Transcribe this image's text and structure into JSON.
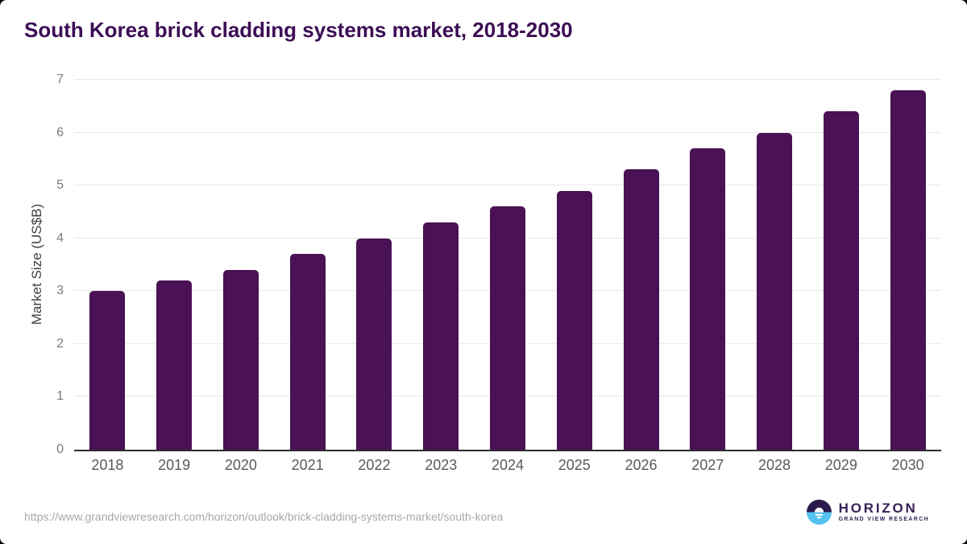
{
  "title": "South Korea brick cladding systems market, 2018-2030",
  "chart_data": {
    "type": "bar",
    "title": "South Korea brick cladding systems market, 2018-2030",
    "categories": [
      "2018",
      "2019",
      "2020",
      "2021",
      "2022",
      "2023",
      "2024",
      "2025",
      "2026",
      "2027",
      "2028",
      "2029",
      "2030"
    ],
    "values": [
      3.0,
      3.2,
      3.4,
      3.7,
      4.0,
      4.3,
      4.6,
      4.9,
      5.3,
      5.7,
      6.0,
      6.4,
      6.8
    ],
    "xlabel": "",
    "ylabel": "Market Size (US$B)",
    "ylim": [
      0,
      7
    ],
    "yticks": [
      0,
      1,
      2,
      3,
      4,
      5,
      6,
      7
    ],
    "grid": true,
    "legend": "none",
    "bar_color": "#4a1155"
  },
  "footer": {
    "source_url": "https://www.grandviewresearch.com/horizon/outlook/brick-cladding-systems-market/south-korea",
    "logo": {
      "name": "HORIZON",
      "subtitle": "GRAND VIEW RESEARCH",
      "icon": "horizon-sun-icon"
    }
  },
  "colors": {
    "title_text": "#3c0e55",
    "bar": "#4a1155",
    "axis_line": "#2d2d2d",
    "gridline": "#e8e8e8",
    "y_tick_text": "#7b7b7b",
    "x_tick_text": "#58595b",
    "url_text": "#a8a8a8",
    "logo_navy": "#2b1b4d",
    "logo_blue": "#56c2ef",
    "logo_text": "#372257"
  }
}
